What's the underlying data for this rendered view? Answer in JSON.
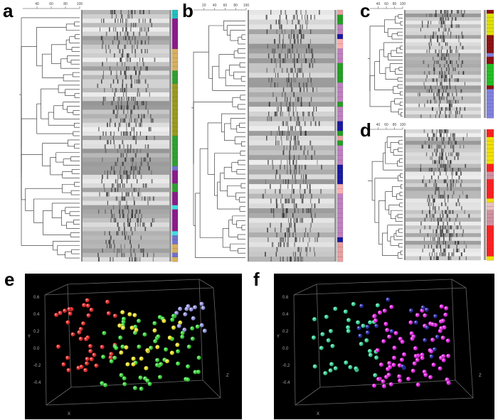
{
  "panels": [
    {
      "label": "a",
      "scale": [
        "40",
        "60",
        "80",
        "100"
      ]
    },
    {
      "label": "b",
      "scale": [
        "20",
        "40",
        "60",
        "80",
        "100"
      ]
    },
    {
      "label": "c",
      "scale": [
        "40",
        "60",
        "80",
        "100"
      ]
    },
    {
      "label": "d",
      "scale": [
        "40",
        "60",
        "80",
        "100"
      ]
    },
    {
      "label": "e",
      "axes": [
        "Y",
        "X",
        "Z"
      ],
      "ticks": [
        "0.6",
        "0.4",
        "0.2",
        "0.0",
        "-0.2",
        "-0.4"
      ]
    },
    {
      "label": "f",
      "axes": [
        "Y",
        "X",
        "Z"
      ],
      "ticks": [
        "0.6",
        "0.4",
        "0.2",
        "0.0",
        "-0.2",
        "-0.4"
      ]
    }
  ]
}
